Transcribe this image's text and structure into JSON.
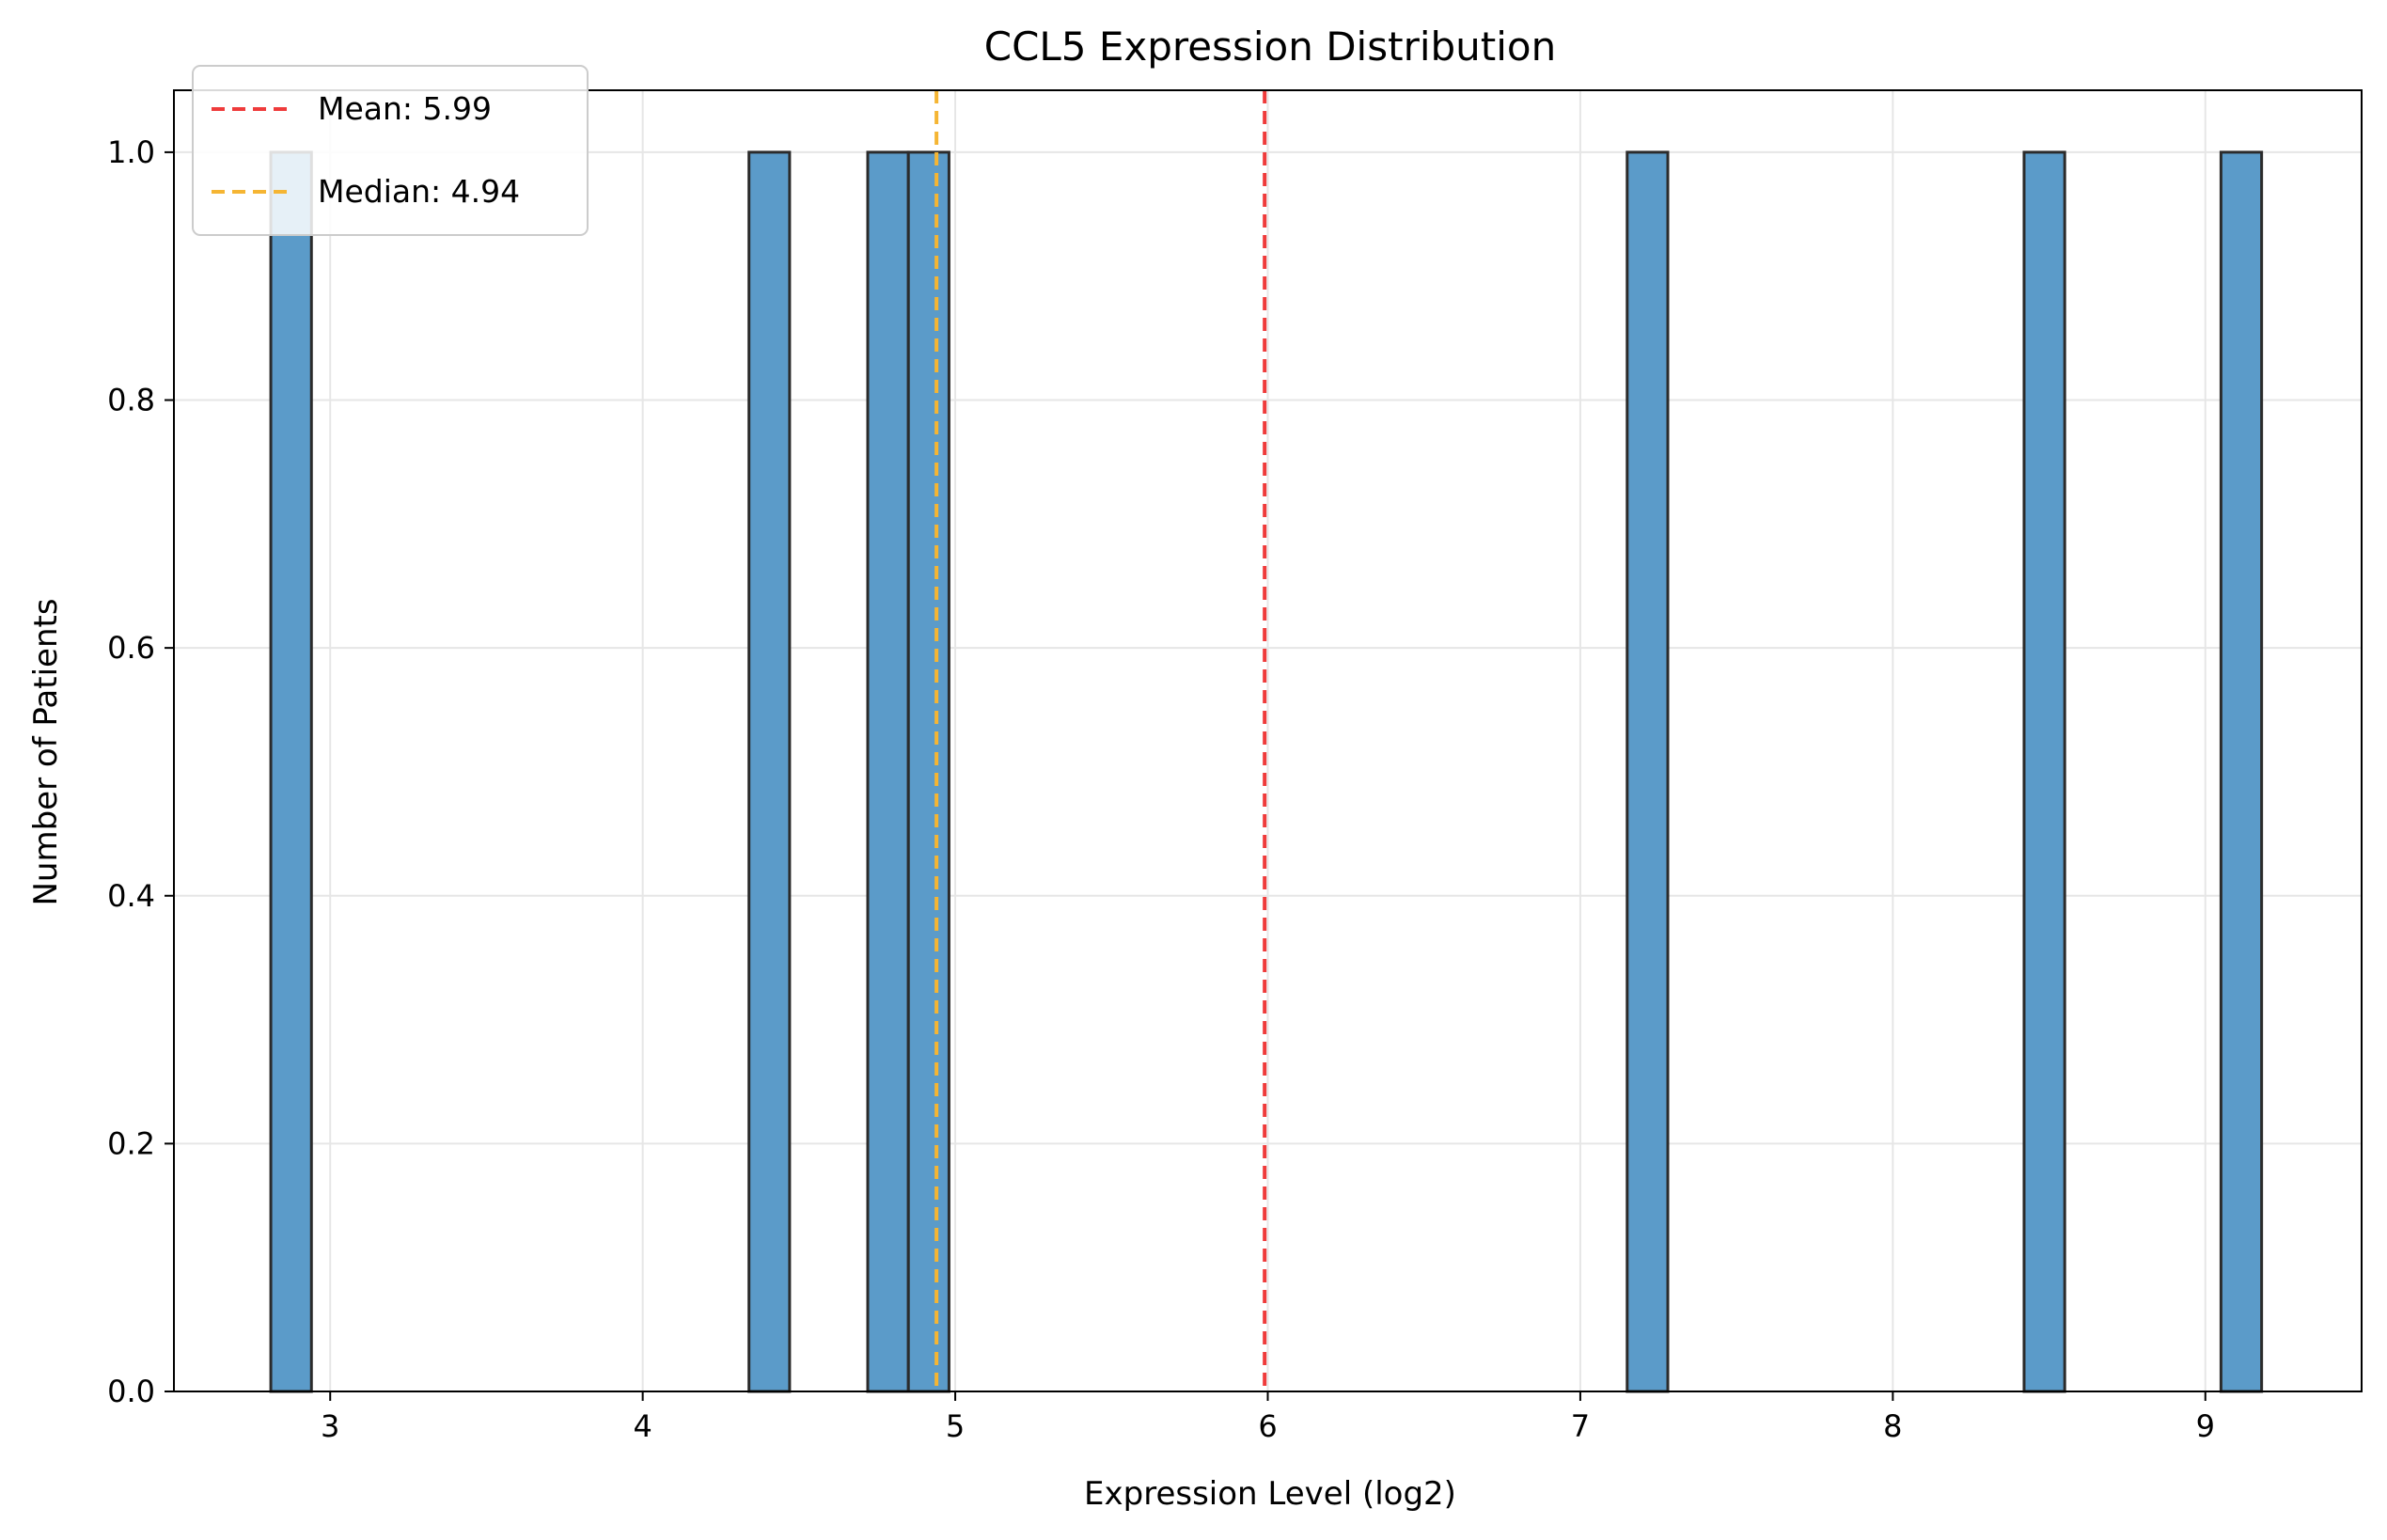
{
  "chart_data": {
    "type": "bar",
    "title": "CCL5 Expression Distribution",
    "xlabel": "Expression Level (log2)",
    "ylabel": "Number of Patients",
    "xlim": [
      2.5,
      9.5
    ],
    "ylim": [
      0,
      1.05
    ],
    "xticks": [
      3,
      4,
      5,
      6,
      7,
      8,
      9
    ],
    "yticks": [
      0.0,
      0.2,
      0.4,
      0.6,
      0.8,
      1.0
    ],
    "grid": true,
    "legend_position": "top-left",
    "bar_color": "#5b9bc9",
    "bar_edge_color": "#2b2b2b",
    "bins": [
      {
        "x0": 2.81,
        "x1": 2.94,
        "count": 1
      },
      {
        "x0": 4.34,
        "x1": 4.47,
        "count": 1
      },
      {
        "x0": 4.72,
        "x1": 4.85,
        "count": 1
      },
      {
        "x0": 4.85,
        "x1": 4.98,
        "count": 1
      },
      {
        "x0": 7.15,
        "x1": 7.28,
        "count": 1
      },
      {
        "x0": 8.42,
        "x1": 8.55,
        "count": 1
      },
      {
        "x0": 9.05,
        "x1": 9.18,
        "count": 1
      }
    ],
    "reference_lines": [
      {
        "label": "Mean: 5.99",
        "x": 5.99,
        "color": "#ef3b3b"
      },
      {
        "label": "Median: 4.94",
        "x": 4.94,
        "color": "#f5b533"
      }
    ]
  }
}
